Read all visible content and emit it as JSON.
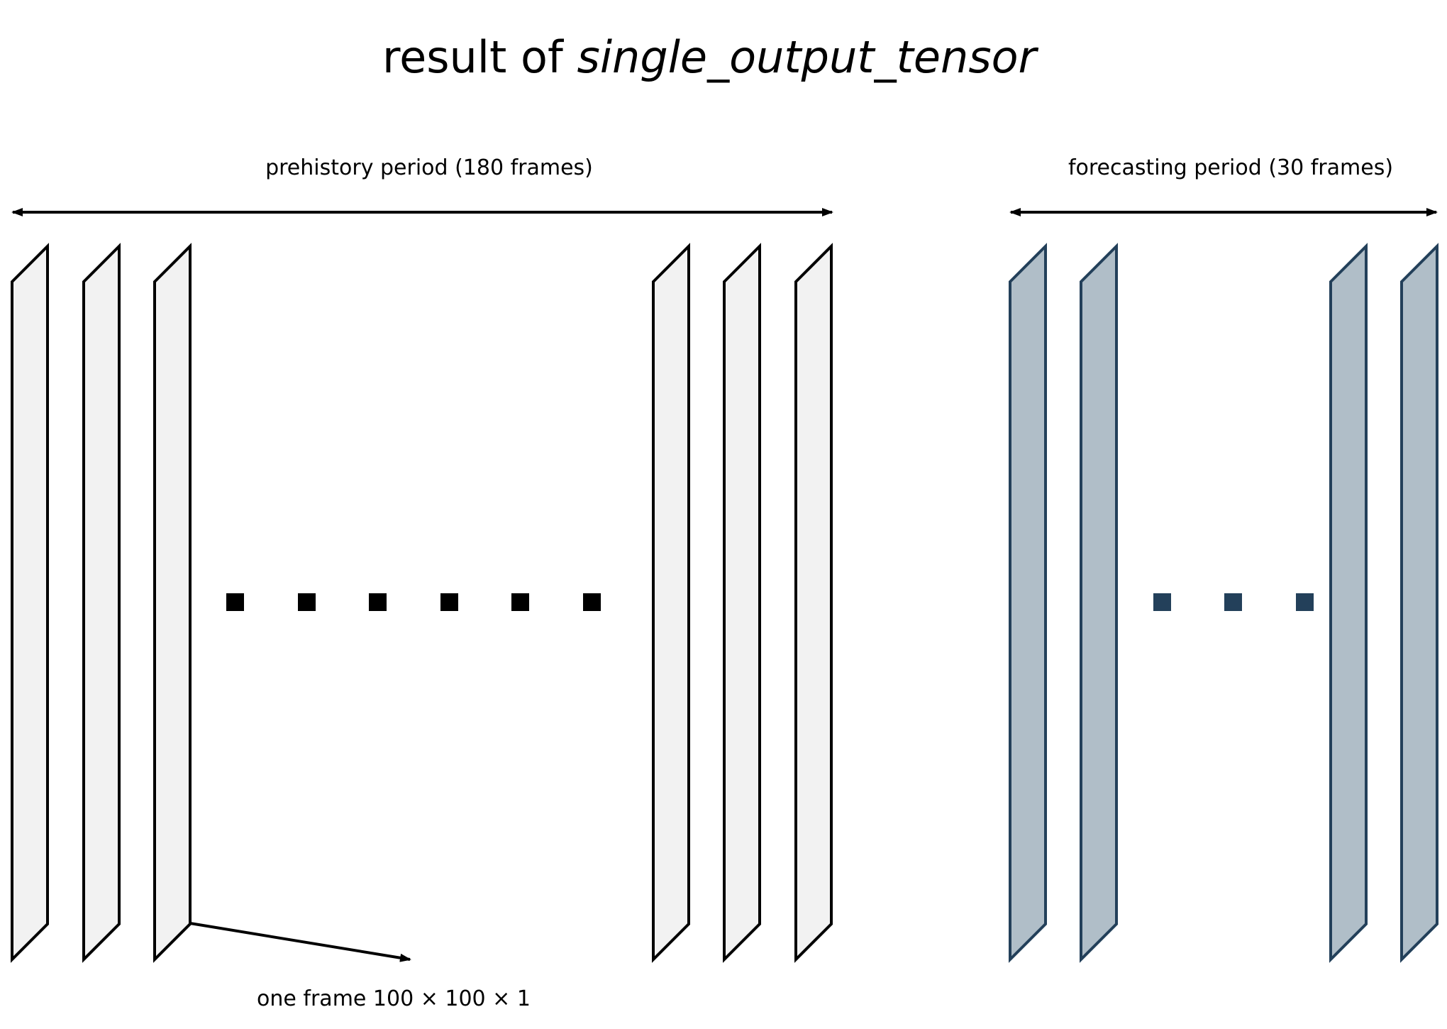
{
  "title": {
    "prefix": "result of ",
    "emphasis": "single_output_tensor"
  },
  "prehistory": {
    "label": "prehistory period (180 frames)",
    "frame_fill": "#f2f2f2",
    "frame_stroke": "#000000"
  },
  "forecasting": {
    "label": "forecasting period (30 frames)",
    "frame_fill": "#b0bec8",
    "frame_stroke": "#23405a"
  },
  "frame_annotation": {
    "label": "one frame 100 × 100 × 1"
  }
}
